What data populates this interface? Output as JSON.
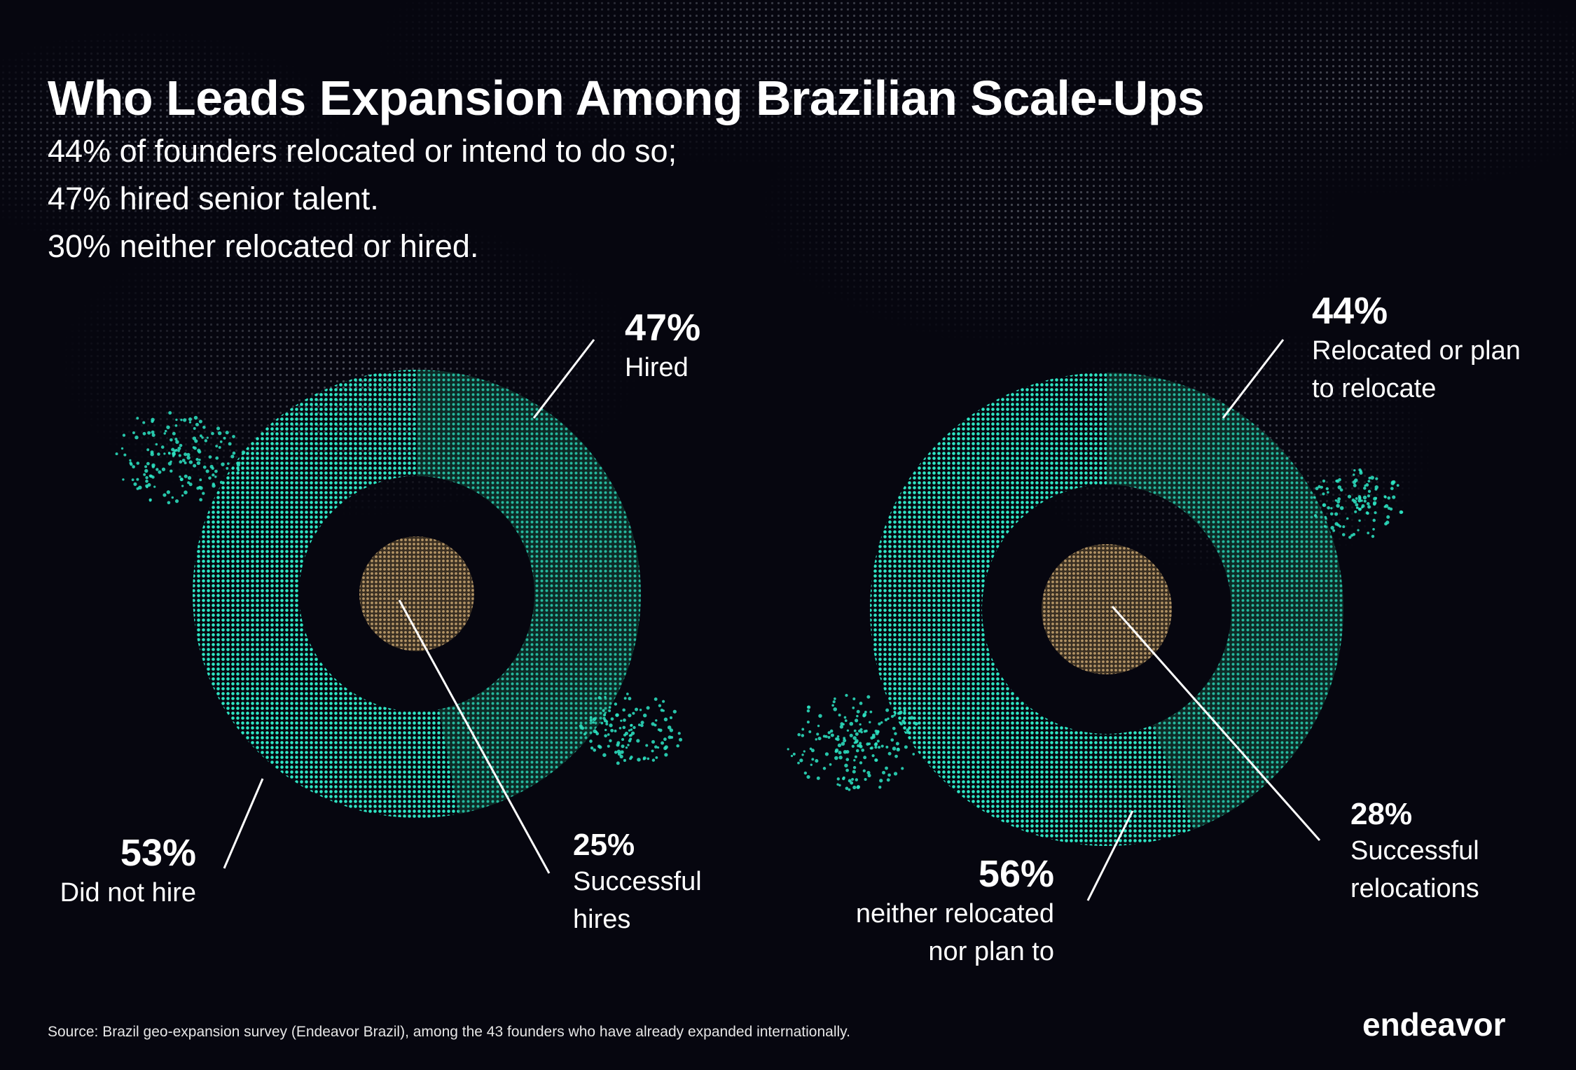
{
  "title": "Who Leads Expansion Among Brazilian Scale-Ups",
  "subtitle_lines": [
    "44% of founders relocated or intend to do so;",
    "47% hired senior talent.",
    "30% neither relocated or hired."
  ],
  "source": "Source: Brazil geo-expansion survey (Endeavor Brazil), among the 43 founders who have already expanded internationally.",
  "logo": "endeavor",
  "colors": {
    "background": "#06060f",
    "ring_primary": "#2ee6c4",
    "ring_secondary": "#1f8a78",
    "center_dot": "#a88a5e",
    "text": "#ffffff"
  },
  "chart_data": [
    {
      "type": "pie",
      "subtype": "donut",
      "slices": [
        {
          "label": "Hired",
          "value": 47,
          "display": "47%"
        },
        {
          "label": "Did not hire",
          "value": 53,
          "display": "53%"
        }
      ],
      "inner": {
        "label_lines": [
          "Successful",
          "hires"
        ],
        "value": 25,
        "display": "25%"
      }
    },
    {
      "type": "pie",
      "subtype": "donut",
      "slices": [
        {
          "label_lines": [
            "Relocated or plan",
            "to relocate"
          ],
          "value": 44,
          "display": "44%"
        },
        {
          "label_lines": [
            "neither relocated",
            "nor plan to"
          ],
          "value": 56,
          "display": "56%"
        }
      ],
      "inner": {
        "label_lines": [
          "Successful",
          "relocations"
        ],
        "value": 28,
        "display": "28%"
      }
    }
  ]
}
